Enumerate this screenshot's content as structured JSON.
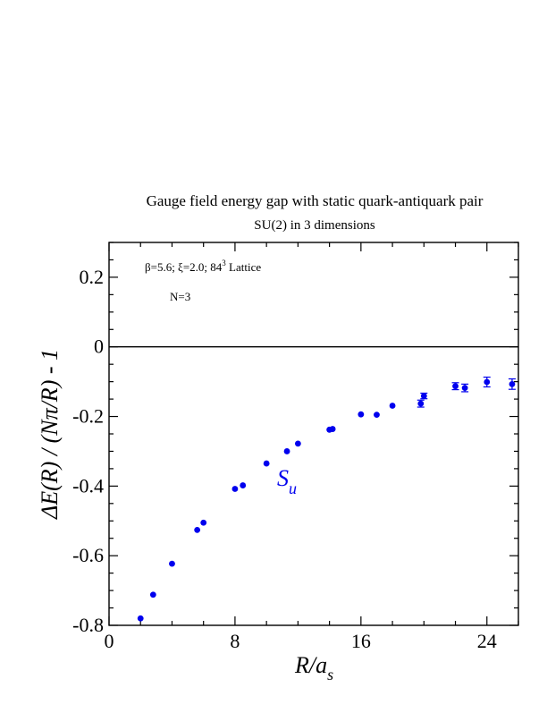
{
  "chart_data": {
    "type": "scatter",
    "title": "Gauge field energy gap with static quark-antiquark pair",
    "subtitle": "SU(2) in 3 dimensions",
    "xlabel": {
      "main": "R/a",
      "sub": "s"
    },
    "ylabel": "ΔE(R) / (Nπ/R) - 1",
    "xlim": [
      0,
      26
    ],
    "ylim": [
      -0.8,
      0.3
    ],
    "x_ticks": [
      0,
      8,
      16,
      24
    ],
    "y_ticks": [
      -0.8,
      -0.6,
      -0.4,
      -0.2,
      0,
      0.2
    ],
    "x_tick_labels": [
      "0",
      "8",
      "16",
      "24"
    ],
    "y_tick_labels": [
      "-0.8",
      "-0.6",
      "-0.4",
      "-0.2",
      "0",
      "0.2"
    ],
    "reference_line_y": 0,
    "grid": false,
    "annotations": {
      "params": {
        "pre": "β=5.6;  ξ=2.0; 84",
        "sup": "3",
        "post": " Lattice"
      },
      "n_label": "N=3",
      "series_label": {
        "main": "S",
        "sub": "u"
      }
    },
    "marker_color": "#0000ee",
    "series": [
      {
        "points": [
          {
            "x": 2.0,
            "y": -0.78,
            "err": 0.004
          },
          {
            "x": 2.8,
            "y": -0.712,
            "err": 0.004
          },
          {
            "x": 4.0,
            "y": -0.623,
            "err": 0.004
          },
          {
            "x": 5.6,
            "y": -0.526,
            "err": 0.004
          },
          {
            "x": 6.0,
            "y": -0.505,
            "err": 0.004
          },
          {
            "x": 8.0,
            "y": -0.408,
            "err": 0.004
          },
          {
            "x": 8.5,
            "y": -0.398,
            "err": 0.004
          },
          {
            "x": 10.0,
            "y": -0.335,
            "err": 0.004
          },
          {
            "x": 11.3,
            "y": -0.3,
            "err": 0.004
          },
          {
            "x": 12.0,
            "y": -0.278,
            "err": 0.004
          },
          {
            "x": 14.0,
            "y": -0.238,
            "err": 0.005
          },
          {
            "x": 14.2,
            "y": -0.236,
            "err": 0.005
          },
          {
            "x": 16.0,
            "y": -0.194,
            "err": 0.005
          },
          {
            "x": 17.0,
            "y": -0.195,
            "err": 0.006
          },
          {
            "x": 18.0,
            "y": -0.169,
            "err": 0.006
          },
          {
            "x": 19.8,
            "y": -0.163,
            "err": 0.01
          },
          {
            "x": 20.0,
            "y": -0.141,
            "err": 0.008
          },
          {
            "x": 22.0,
            "y": -0.113,
            "err": 0.01
          },
          {
            "x": 22.6,
            "y": -0.118,
            "err": 0.011
          },
          {
            "x": 24.0,
            "y": -0.101,
            "err": 0.014
          },
          {
            "x": 25.6,
            "y": -0.107,
            "err": 0.015
          }
        ]
      }
    ]
  }
}
